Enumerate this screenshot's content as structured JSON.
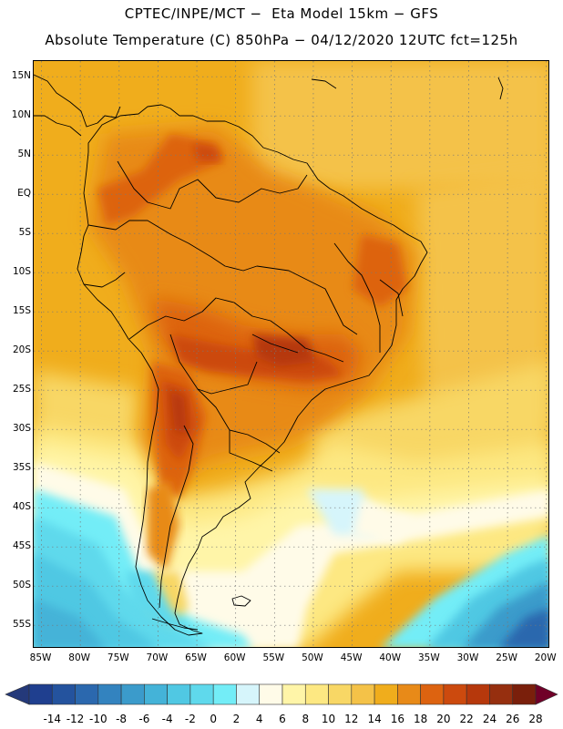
{
  "title": {
    "line1": "CPTEC/INPE/MCT −  Eta Model 15km − GFS",
    "line2": "Absolute Temperature (C) 850hPa − 04/12/2020 12UTC fct=125h"
  },
  "map": {
    "region": "South America",
    "field": "Absolute Temperature (C) 850hPa",
    "lon_range": [
      -86,
      -19.5
    ],
    "lat_range": [
      -58,
      17
    ],
    "lat_labels": [
      "15N",
      "10N",
      "5N",
      "EQ",
      "5S",
      "10S",
      "15S",
      "20S",
      "25S",
      "30S",
      "35S",
      "40S",
      "45S",
      "50S",
      "55S"
    ],
    "lat_values": [
      15,
      10,
      5,
      0,
      -5,
      -10,
      -15,
      -20,
      -25,
      -30,
      -35,
      -40,
      -45,
      -50,
      -55
    ],
    "lon_labels": [
      "85W",
      "80W",
      "75W",
      "70W",
      "65W",
      "60W",
      "55W",
      "50W",
      "45W",
      "40W",
      "35W",
      "30W",
      "25W",
      "20W"
    ],
    "lon_values": [
      -85,
      -80,
      -75,
      -70,
      -65,
      -60,
      -55,
      -50,
      -45,
      -40,
      -35,
      -30,
      -25,
      -20
    ]
  },
  "colorbar": {
    "labels": [
      "-14",
      "-12",
      "-10",
      "-8",
      "-6",
      "-4",
      "-2",
      "0",
      "2",
      "4",
      "6",
      "8",
      "10",
      "12",
      "14",
      "16",
      "18",
      "20",
      "22",
      "24",
      "26",
      "28"
    ],
    "colors": [
      "#1f3f8f",
      "#24539e",
      "#2b68ae",
      "#3383bf",
      "#3b9bcb",
      "#44b3d8",
      "#50c8e3",
      "#5fd9ec",
      "#73edf7",
      "#d6f5fb",
      "#fffbe8",
      "#fff5a8",
      "#fde882",
      "#f8d765",
      "#f4c248",
      "#f0ad1c",
      "#e88a18",
      "#dd6310",
      "#cc4a0e",
      "#b6380c",
      "#962f0f",
      "#7a1f0b"
    ],
    "left_cap": "#24397a",
    "right_cap": "#700028"
  }
}
